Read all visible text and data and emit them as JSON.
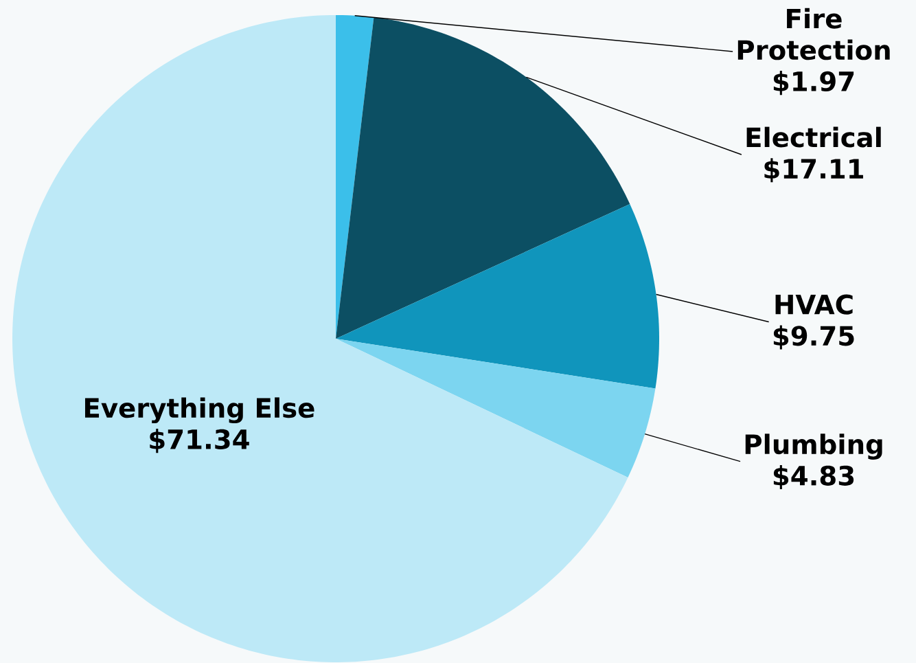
{
  "chart_data": {
    "type": "pie",
    "categories": [
      "Fire Protection",
      "Electrical",
      "HVAC",
      "Plumbing",
      "Everything Else"
    ],
    "values": [
      1.97,
      17.11,
      9.75,
      4.83,
      71.34
    ],
    "value_labels": [
      "$1.97",
      "$17.11",
      "$9.75",
      "$4.83",
      "$71.34"
    ],
    "colors": [
      "#3bbfea",
      "#0c4f63",
      "#1095bc",
      "#7cd5f0",
      "#bde9f7"
    ]
  }
}
